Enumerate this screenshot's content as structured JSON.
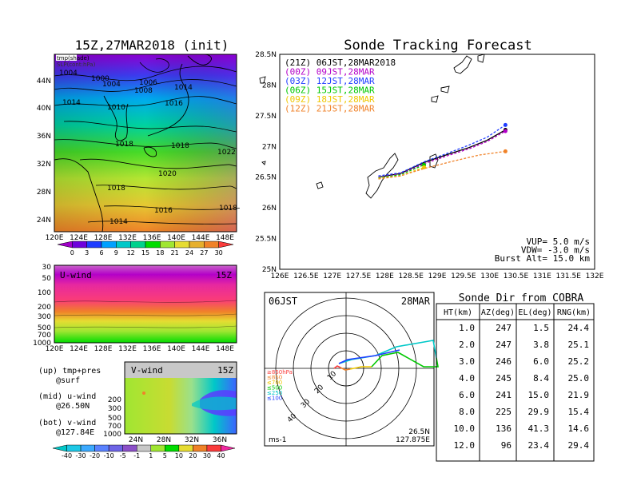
{
  "left": {
    "map_title": "15Z,27MAR2018 (init)",
    "map_sub1": "tmp(shade)",
    "map_sub2": "SLP(cont:hPa)",
    "isobar_labels": [
      "1004",
      "1000",
      "1004",
      "1006",
      "1008",
      "1014",
      "1014",
      "1010",
      "1016",
      "1018",
      "1018",
      "1022",
      "1020",
      "1018",
      "1016",
      "1018",
      "1014"
    ],
    "map_ylabels": [
      "44N",
      "40N",
      "36N",
      "32N",
      "28N",
      "24N"
    ],
    "xlabels": [
      "120E",
      "124E",
      "128E",
      "132E",
      "136E",
      "140E",
      "144E",
      "148E"
    ],
    "temp_colorbar": {
      "labels": [
        "0",
        "3",
        "6",
        "9",
        "12",
        "15",
        "18",
        "21",
        "24",
        "27",
        "30"
      ],
      "colors": [
        "#a000c8",
        "#6e00dc",
        "#1e3cff",
        "#00a0ff",
        "#00c8c8",
        "#00d28c",
        "#00dc00",
        "#a0e632",
        "#e6dc32",
        "#e6af2d",
        "#f08228",
        "#fa3c3c"
      ]
    },
    "u_panel": {
      "title": "U-wind",
      "time": "15Z",
      "ylabels": [
        "30",
        "50",
        "100",
        "200",
        "300",
        "500",
        "700",
        "1000"
      ]
    },
    "v_panel": {
      "title": "V-wind",
      "time": "15Z",
      "ylabels": [
        "200",
        "300",
        "500",
        "700",
        "1000"
      ],
      "xlabels": [
        "24N",
        "28N",
        "32N",
        "36N"
      ]
    },
    "legend_lines": [
      [
        "(up) tmp+pres",
        "@surf"
      ],
      [
        "(mid) u-wind",
        "@26.50N"
      ],
      [
        "(bot) v-wind",
        "@127.84E"
      ]
    ],
    "wind_colorbar": {
      "labels": [
        "-40",
        "-30",
        "-20",
        "-10",
        "-5",
        "-1",
        "1",
        "5",
        "10",
        "20",
        "30",
        "40"
      ],
      "colors": [
        "#00c8c8",
        "#1ec8e6",
        "#3caaff",
        "#5a82ff",
        "#6e64e6",
        "#8c50c8",
        "#c8c8c8",
        "#a0e632",
        "#00dc00",
        "#e6dc32",
        "#f08228",
        "#fa3c3c",
        "#f028a0"
      ]
    }
  },
  "tracking": {
    "title": "Sonde Tracking Forecast",
    "legend": [
      {
        "text": "(21Z)  06JST,28MAR2018",
        "color": "#000000"
      },
      {
        "text": "(00Z)  09JST,28MAR",
        "color": "#b400c8"
      },
      {
        "text": "(03Z)  12JST,28MAR",
        "color": "#1e3cff"
      },
      {
        "text": "(06Z)  15JST,28MAR",
        "color": "#00c800"
      },
      {
        "text": "(09Z)  18JST,28MAR",
        "color": "#f0c800"
      },
      {
        "text": "(12Z)  21JST,28MAR",
        "color": "#f08228"
      }
    ],
    "params": [
      "VUP=  5.0 m/s",
      "VDW= -3.0 m/s",
      "Burst Alt= 15.0 km"
    ],
    "xlabels": [
      "126E",
      "126.5E",
      "127E",
      "127.5E",
      "128E",
      "128.5E",
      "129E",
      "129.5E",
      "130E",
      "130.5E",
      "131E",
      "131.5E",
      "132E"
    ],
    "ylabels": [
      "28.5N",
      "28N",
      "27.5N",
      "27N",
      "26.5N",
      "26N",
      "25.5N",
      "25N"
    ]
  },
  "chart_data": [
    {
      "type": "line",
      "title": "Sonde Tracking Forecast",
      "xlim": [
        126,
        132
      ],
      "ylim": [
        25,
        28.5
      ],
      "series": [
        {
          "name": "(21Z)  06JST,28MAR2018",
          "color": "#000000",
          "x": [
            127.88,
            128.3,
            128.75,
            129.2,
            129.6,
            129.95,
            130.3
          ],
          "y": [
            26.5,
            26.56,
            26.74,
            26.87,
            26.98,
            27.1,
            27.27
          ]
        },
        {
          "name": "(00Z)  09JST,28MAR",
          "color": "#b400c8",
          "x": [
            127.88,
            128.3,
            128.75,
            129.2,
            129.6,
            129.95,
            130.3
          ],
          "y": [
            26.5,
            26.55,
            26.72,
            26.85,
            26.96,
            27.08,
            27.25
          ]
        },
        {
          "name": "(03Z)  12JST,28MAR",
          "color": "#1e3cff",
          "x": [
            127.88,
            128.3,
            128.75,
            129.2,
            129.6,
            129.95,
            130.3
          ],
          "y": [
            26.52,
            26.57,
            26.75,
            26.89,
            27.02,
            27.15,
            27.35
          ]
        },
        {
          "name": "(06Z)  15JST,28MAR",
          "color": "#00c800",
          "x": [
            127.88,
            128.3,
            128.75
          ],
          "y": [
            26.49,
            26.54,
            26.7
          ]
        },
        {
          "name": "(09Z)  18JST,28MAR",
          "color": "#f0c800",
          "x": [
            127.88,
            128.3,
            128.75
          ],
          "y": [
            26.48,
            26.52,
            26.66
          ]
        },
        {
          "name": "(12Z)  21JST,28MAR",
          "color": "#f08228",
          "x": [
            127.88,
            128.3,
            128.75,
            129.3,
            129.8,
            130.3
          ],
          "y": [
            26.47,
            26.52,
            26.64,
            26.76,
            26.86,
            26.92
          ]
        }
      ]
    },
    {
      "type": "table",
      "title": "Sonde Dir from COBRA",
      "columns": [
        "HT(km)",
        "AZ(deg)",
        "EL(deg)",
        "RNG(km)"
      ],
      "rows": [
        [
          "1.0",
          "247",
          "1.5",
          "24.4"
        ],
        [
          "2.0",
          "247",
          "3.8",
          "25.1"
        ],
        [
          "3.0",
          "246",
          "6.0",
          "25.2"
        ],
        [
          "4.0",
          "245",
          "8.4",
          "25.0"
        ],
        [
          "6.0",
          "241",
          "15.0",
          "21.9"
        ],
        [
          "8.0",
          "225",
          "29.9",
          "15.4"
        ],
        [
          "10.0",
          "136",
          "41.3",
          "14.6"
        ],
        [
          "12.0",
          "96",
          "23.4",
          "29.4"
        ]
      ]
    }
  ],
  "hodo": {
    "time": "06JST",
    "date": "28MAR",
    "ring_labels": [
      "10",
      "20",
      "30",
      "40"
    ],
    "unit": "ms-1",
    "lat": "26.5N",
    "lon": "127.875E",
    "levels": [
      {
        "text": "≥850hPa",
        "color": "#fa3c3c"
      },
      {
        "text": "≤850",
        "color": "#f08228"
      },
      {
        "text": "≤700",
        "color": "#f0c800"
      },
      {
        "text": "≤500",
        "color": "#00c800"
      },
      {
        "text": "≤250",
        "color": "#00c8c8"
      },
      {
        "text": "≤100",
        "color": "#1e3cff"
      }
    ]
  }
}
